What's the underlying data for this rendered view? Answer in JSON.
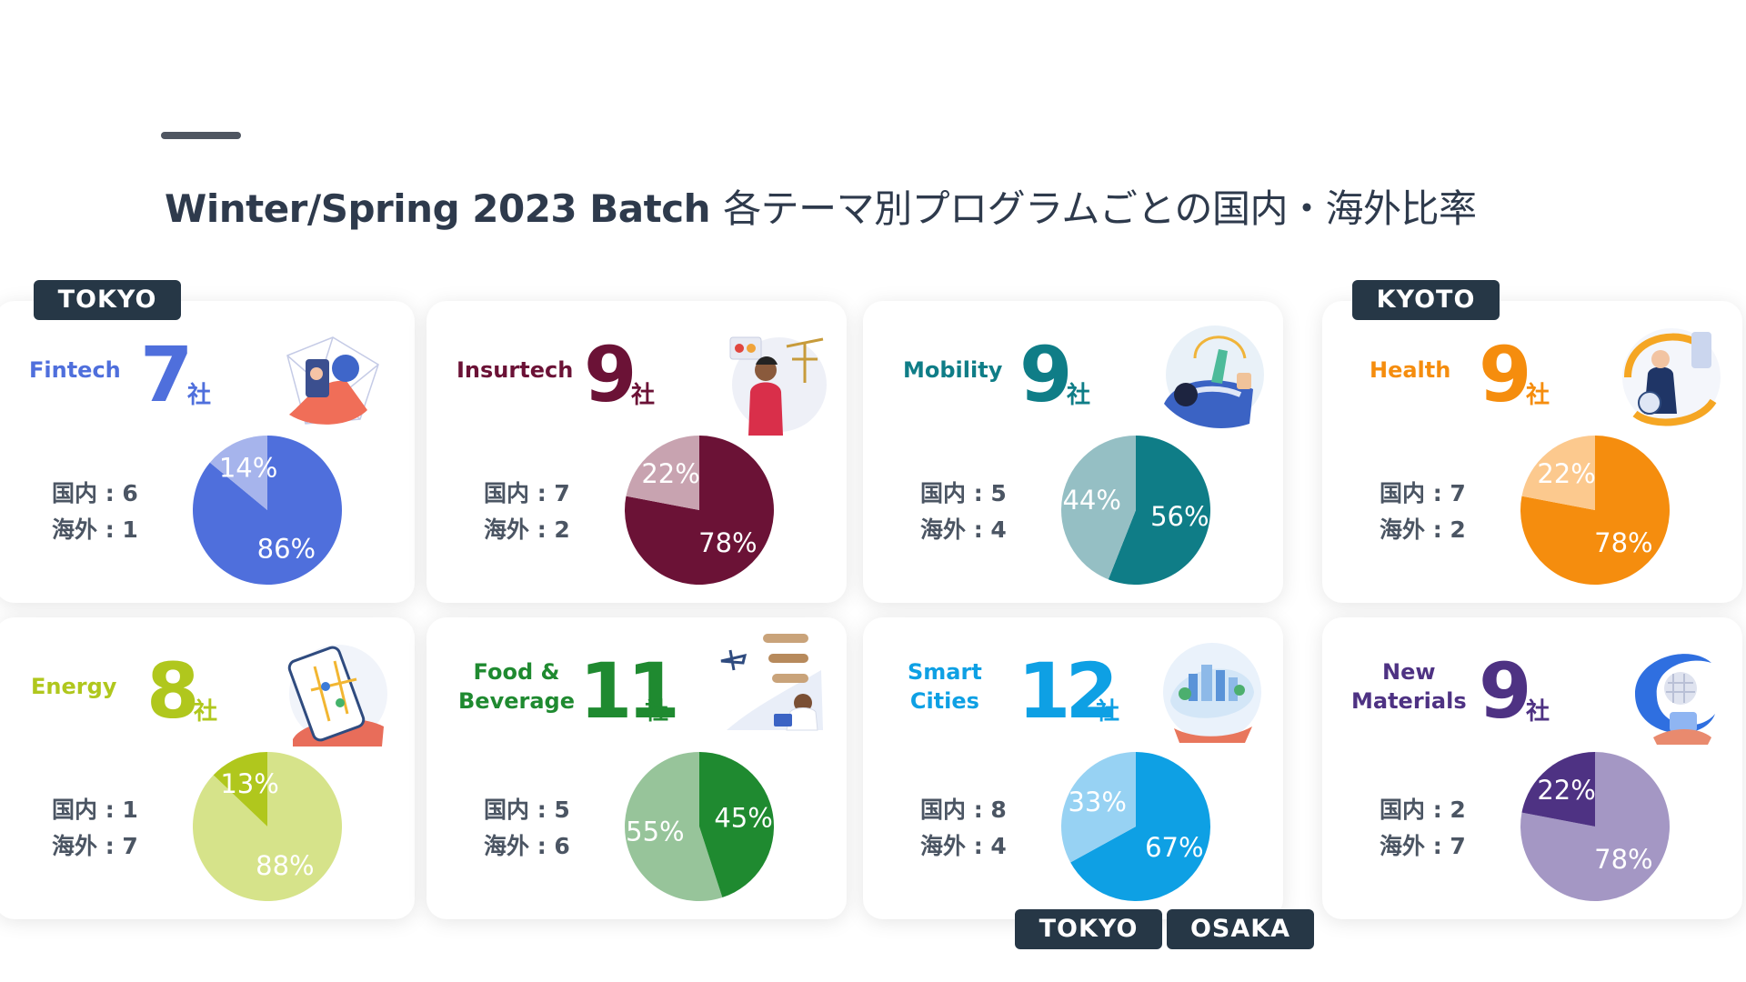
{
  "header": {
    "title_main": "Winter/Spring 2023 Batch",
    "title_sub": "各テーマ別プログラムごとの国内・海外比率"
  },
  "city_tags": {
    "tokyo": "TOKYO",
    "kyoto": "KYOTO",
    "tokyo_2": "TOKYO",
    "osaka": "OSAKA"
  },
  "unit_label": "社",
  "cards": [
    {
      "theme": "Fintech",
      "count": "7",
      "domestic_label": "国内 : 6",
      "overseas_label": "海外 : 1",
      "color": "#4f6fdc"
    },
    {
      "theme": "Insurtech",
      "count": "9",
      "domestic_label": "国内 : 7",
      "overseas_label": "海外 : 2",
      "color": "#6b1236"
    },
    {
      "theme": "Mobility",
      "count": "9",
      "domestic_label": "国内 : 5",
      "overseas_label": "海外 : 4",
      "color": "#0f7d87"
    },
    {
      "theme": "Health",
      "count": "9",
      "domestic_label": "国内 : 7",
      "overseas_label": "海外 : 2",
      "color": "#f58d0e"
    },
    {
      "theme": "Energy",
      "count": "8",
      "domestic_label": "国内 : 1",
      "overseas_label": "海外 : 7",
      "color": "#b0c71d"
    },
    {
      "theme_line1": "Food &",
      "theme_line2": "Beverage",
      "count": "11",
      "domestic_label": "国内 : 5",
      "overseas_label": "海外 : 6",
      "color": "#1f8a30"
    },
    {
      "theme_line1": "Smart",
      "theme_line2": "Cities",
      "count": "12",
      "domestic_label": "国内 : 8",
      "overseas_label": "海外 : 4",
      "color": "#0ea0e4"
    },
    {
      "theme_line1": "New",
      "theme_line2": "Materials",
      "count": "9",
      "domestic_label": "国内 : 2",
      "overseas_label": "海外 : 7",
      "color": "#4e3283"
    }
  ],
  "chart_data": [
    {
      "type": "pie",
      "title": "Fintech",
      "categories": [
        "国内",
        "海外"
      ],
      "values": [
        86,
        14
      ],
      "labels": [
        "86%",
        "14%"
      ],
      "colors": [
        "#4f6fdc",
        "#a6b4ec"
      ]
    },
    {
      "type": "pie",
      "title": "Insurtech",
      "categories": [
        "国内",
        "海外"
      ],
      "values": [
        78,
        22
      ],
      "labels": [
        "78%",
        "22%"
      ],
      "colors": [
        "#6b1236",
        "#c8a3b0"
      ]
    },
    {
      "type": "pie",
      "title": "Mobility",
      "categories": [
        "国内",
        "海外"
      ],
      "values": [
        56,
        44
      ],
      "labels": [
        "56%",
        "44%"
      ],
      "colors": [
        "#0f7d87",
        "#95bfc4"
      ]
    },
    {
      "type": "pie",
      "title": "Health",
      "categories": [
        "国内",
        "海外"
      ],
      "values": [
        78,
        22
      ],
      "labels": [
        "78%",
        "22%"
      ],
      "colors": [
        "#f58d0e",
        "#fcc98e"
      ]
    },
    {
      "type": "pie",
      "title": "Energy",
      "categories": [
        "海外",
        "国内"
      ],
      "values": [
        88,
        13
      ],
      "labels": [
        "88%",
        "13%"
      ],
      "colors": [
        "#d6e38a",
        "#b0c71d"
      ],
      "foreground_index": 1
    },
    {
      "type": "pie",
      "title": "Food & Beverage",
      "categories": [
        "国内",
        "海外"
      ],
      "values": [
        45,
        55
      ],
      "labels": [
        "45%",
        "55%"
      ],
      "colors": [
        "#1f8a30",
        "#97c49a"
      ],
      "foreground_index": 0
    },
    {
      "type": "pie",
      "title": "Smart Cities",
      "categories": [
        "国内",
        "海外"
      ],
      "values": [
        67,
        33
      ],
      "labels": [
        "67%",
        "33%"
      ],
      "colors": [
        "#0ea0e4",
        "#97d2f3"
      ]
    },
    {
      "type": "pie",
      "title": "New Materials",
      "categories": [
        "海外",
        "国内"
      ],
      "values": [
        78,
        22
      ],
      "labels": [
        "78%",
        "22%"
      ],
      "colors": [
        "#a497c4",
        "#4e3283"
      ],
      "foreground_index": 1
    }
  ]
}
